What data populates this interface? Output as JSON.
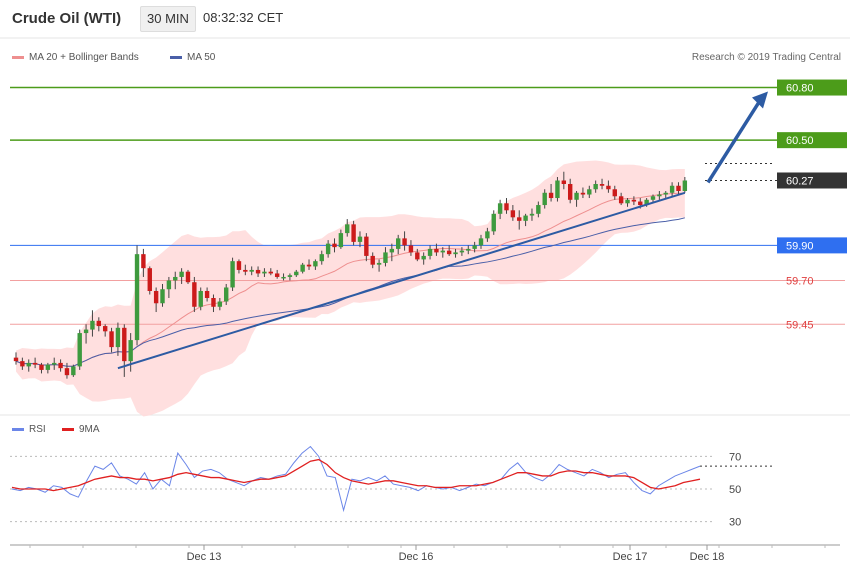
{
  "header": {
    "instrument": "Crude Oil (WTI)",
    "timeframe": "30 MIN",
    "time": "08:32:32 CET"
  },
  "legend": {
    "ma20_label": "MA 20 + Bollinger Bands",
    "ma50_label": "MA 50",
    "credit": "Research © 2019 Trading Central"
  },
  "rsi_legend": {
    "rsi_label": "RSI",
    "ma_label": "9MA"
  },
  "colors": {
    "up": "#3e9a3e",
    "down": "#cc1b1b",
    "bollinger_fill": "#ffd9d9",
    "ma20": "#ee8f8f",
    "ma50": "#4a5fa8",
    "trendline": "#2d5ba3",
    "resistance": "#4c9c1a",
    "pivot": "#2f6ff0",
    "support": "#e04040",
    "rsi": "#6b86e8",
    "rsi_ma": "#e02020"
  },
  "chart_data": [
    {
      "type": "candlestick",
      "title": "Crude Oil (WTI)",
      "ylim": [
        58.95,
        60.9
      ],
      "x_ticks": [
        "Dec 13",
        "Dec 16",
        "Dec 17",
        "Dec 18"
      ],
      "levels": [
        {
          "value": 60.8,
          "label": "60.80",
          "kind": "resistance"
        },
        {
          "value": 60.5,
          "label": "60.50",
          "kind": "resistance"
        },
        {
          "value": 60.27,
          "label": "60.27",
          "kind": "last"
        },
        {
          "value": 59.9,
          "label": "59.90",
          "kind": "pivot"
        },
        {
          "value": 59.7,
          "label": "59.70",
          "kind": "support"
        },
        {
          "value": 59.45,
          "label": "59.45",
          "kind": "support"
        }
      ],
      "forecast_arrow": {
        "from": 60.27,
        "to": 60.8
      },
      "trendline": {
        "start": 59.2,
        "end": 60.2
      },
      "candles": [
        [
          59.26,
          59.29,
          59.22,
          59.24
        ],
        [
          59.24,
          59.26,
          59.19,
          59.21
        ],
        [
          59.21,
          59.25,
          59.18,
          59.23
        ],
        [
          59.23,
          59.26,
          59.2,
          59.22
        ],
        [
          59.22,
          59.23,
          59.17,
          59.19
        ],
        [
          59.19,
          59.23,
          59.17,
          59.22
        ],
        [
          59.22,
          59.26,
          59.19,
          59.23
        ],
        [
          59.23,
          59.25,
          59.18,
          59.2
        ],
        [
          59.2,
          59.23,
          59.14,
          59.16
        ],
        [
          59.16,
          59.22,
          59.15,
          59.21
        ],
        [
          59.21,
          59.42,
          59.19,
          59.4
        ],
        [
          59.4,
          59.45,
          59.34,
          59.42
        ],
        [
          59.42,
          59.53,
          59.38,
          59.47
        ],
        [
          59.47,
          59.49,
          59.41,
          59.44
        ],
        [
          59.44,
          59.45,
          59.38,
          59.41
        ],
        [
          59.41,
          59.43,
          59.29,
          59.32
        ],
        [
          59.32,
          59.46,
          59.27,
          59.43
        ],
        [
          59.43,
          59.45,
          59.15,
          59.24
        ],
        [
          59.24,
          59.4,
          59.18,
          59.36
        ],
        [
          59.36,
          59.9,
          59.33,
          59.85
        ],
        [
          59.85,
          59.88,
          59.72,
          59.77
        ],
        [
          59.77,
          59.78,
          59.62,
          59.64
        ],
        [
          59.64,
          59.66,
          59.52,
          59.57
        ],
        [
          59.57,
          59.68,
          59.55,
          59.65
        ],
        [
          59.65,
          59.72,
          59.6,
          59.7
        ],
        [
          59.7,
          59.75,
          59.65,
          59.72
        ],
        [
          59.72,
          59.77,
          59.68,
          59.75
        ],
        [
          59.75,
          59.76,
          59.68,
          59.69
        ],
        [
          59.69,
          59.72,
          59.52,
          59.55
        ],
        [
          59.55,
          59.66,
          59.53,
          59.64
        ],
        [
          59.64,
          59.66,
          59.58,
          59.6
        ],
        [
          59.6,
          59.62,
          59.52,
          59.55
        ],
        [
          59.55,
          59.6,
          59.53,
          59.58
        ],
        [
          59.58,
          59.68,
          59.56,
          59.66
        ],
        [
          59.66,
          59.83,
          59.64,
          59.81
        ],
        [
          59.81,
          59.82,
          59.74,
          59.76
        ],
        [
          59.76,
          59.79,
          59.73,
          59.75
        ],
        [
          59.75,
          59.78,
          59.73,
          59.76
        ],
        [
          59.76,
          59.78,
          59.72,
          59.74
        ],
        [
          59.74,
          59.77,
          59.72,
          59.75
        ],
        [
          59.75,
          59.77,
          59.73,
          59.74
        ],
        [
          59.74,
          59.76,
          59.71,
          59.72
        ],
        [
          59.72,
          59.74,
          59.7,
          59.72
        ],
        [
          59.72,
          59.74,
          59.7,
          59.73
        ],
        [
          59.73,
          59.76,
          59.72,
          59.75
        ],
        [
          59.75,
          59.8,
          59.74,
          59.79
        ],
        [
          59.79,
          59.82,
          59.76,
          59.78
        ],
        [
          59.78,
          59.82,
          59.76,
          59.81
        ],
        [
          59.81,
          59.87,
          59.79,
          59.85
        ],
        [
          59.85,
          59.93,
          59.83,
          59.91
        ],
        [
          59.91,
          59.94,
          59.86,
          59.89
        ],
        [
          59.89,
          59.99,
          59.88,
          59.97
        ],
        [
          59.97,
          60.05,
          59.95,
          60.02
        ],
        [
          60.02,
          60.04,
          59.9,
          59.92
        ],
        [
          59.92,
          59.98,
          59.89,
          59.95
        ],
        [
          59.95,
          59.97,
          59.81,
          59.84
        ],
        [
          59.84,
          59.86,
          59.77,
          59.79
        ],
        [
          59.79,
          59.82,
          59.75,
          59.8
        ],
        [
          59.8,
          59.89,
          59.78,
          59.86
        ],
        [
          59.86,
          59.91,
          59.81,
          59.88
        ],
        [
          59.88,
          59.96,
          59.85,
          59.94
        ],
        [
          59.94,
          59.98,
          59.87,
          59.9
        ],
        [
          59.9,
          59.93,
          59.84,
          59.86
        ],
        [
          59.86,
          59.88,
          59.81,
          59.82
        ],
        [
          59.82,
          59.86,
          59.79,
          59.84
        ],
        [
          59.84,
          59.9,
          59.82,
          59.88
        ],
        [
          59.88,
          59.91,
          59.84,
          59.86
        ],
        [
          59.86,
          59.89,
          59.83,
          59.87
        ],
        [
          59.87,
          59.9,
          59.84,
          59.85
        ],
        [
          59.85,
          59.88,
          59.83,
          59.86
        ],
        [
          59.86,
          59.89,
          59.84,
          59.87
        ],
        [
          59.87,
          59.9,
          59.85,
          59.88
        ],
        [
          59.88,
          59.92,
          59.86,
          59.9
        ],
        [
          59.9,
          59.96,
          59.88,
          59.94
        ],
        [
          59.94,
          60.0,
          59.92,
          59.98
        ],
        [
          59.98,
          60.1,
          59.96,
          60.08
        ],
        [
          60.08,
          60.16,
          60.05,
          60.14
        ],
        [
          60.14,
          60.17,
          60.08,
          60.1
        ],
        [
          60.1,
          60.13,
          60.04,
          60.06
        ],
        [
          60.06,
          60.1,
          59.99,
          60.04
        ],
        [
          60.04,
          60.08,
          60.01,
          60.07
        ],
        [
          60.07,
          60.11,
          60.04,
          60.08
        ],
        [
          60.08,
          60.15,
          60.06,
          60.13
        ],
        [
          60.13,
          60.22,
          60.11,
          60.2
        ],
        [
          60.2,
          60.25,
          60.15,
          60.17
        ],
        [
          60.17,
          60.29,
          60.15,
          60.27
        ],
        [
          60.27,
          60.32,
          60.22,
          60.25
        ],
        [
          60.25,
          60.28,
          60.14,
          60.16
        ],
        [
          60.16,
          60.21,
          60.12,
          60.2
        ],
        [
          60.2,
          60.23,
          60.17,
          60.19
        ],
        [
          60.19,
          60.24,
          60.17,
          60.22
        ],
        [
          60.22,
          60.27,
          60.2,
          60.25
        ],
        [
          60.25,
          60.28,
          60.22,
          60.24
        ],
        [
          60.24,
          60.27,
          60.2,
          60.22
        ],
        [
          60.22,
          60.24,
          60.16,
          60.18
        ],
        [
          60.18,
          60.2,
          60.13,
          60.14
        ],
        [
          60.14,
          60.17,
          60.12,
          60.16
        ],
        [
          60.16,
          60.18,
          60.13,
          60.15
        ],
        [
          60.15,
          60.17,
          60.11,
          60.13
        ],
        [
          60.13,
          60.17,
          60.12,
          60.16
        ],
        [
          60.16,
          60.19,
          60.14,
          60.18
        ],
        [
          60.18,
          60.21,
          60.16,
          60.19
        ],
        [
          60.19,
          60.21,
          60.17,
          60.2
        ],
        [
          60.2,
          60.26,
          60.18,
          60.24
        ],
        [
          60.24,
          60.26,
          60.19,
          60.21
        ],
        [
          60.21,
          60.29,
          60.2,
          60.27
        ]
      ]
    },
    {
      "type": "line",
      "title": "RSI",
      "ylim": [
        20,
        80
      ],
      "y_ticks": [
        70,
        50,
        30
      ],
      "series": [
        {
          "name": "RSI",
          "values": [
            50,
            49,
            51,
            50,
            48,
            52,
            51,
            47,
            45,
            55,
            64,
            62,
            66,
            58,
            56,
            53,
            60,
            50,
            56,
            52,
            72,
            65,
            57,
            61,
            62,
            60,
            56,
            54,
            52,
            55,
            57,
            56,
            58,
            59,
            66,
            72,
            76,
            70,
            58,
            57,
            37,
            56,
            55,
            57,
            55,
            58,
            53,
            52,
            51,
            49,
            52,
            51,
            50,
            51,
            49,
            51,
            53,
            52,
            54,
            56,
            62,
            66,
            60,
            57,
            55,
            59,
            65,
            62,
            60,
            58,
            62,
            60,
            57,
            59,
            60,
            54,
            49,
            47,
            52,
            55,
            58,
            60,
            62,
            64
          ]
        },
        {
          "name": "9MA",
          "values": [
            51,
            50,
            50,
            50,
            50,
            49,
            50,
            51,
            52,
            54,
            56,
            57,
            58,
            57,
            57,
            56,
            56,
            55,
            56,
            57,
            59,
            60,
            59,
            58,
            57,
            57,
            56,
            55,
            54,
            55,
            56,
            56,
            57,
            58,
            61,
            64,
            67,
            68,
            65,
            60,
            57,
            55,
            54,
            53,
            54,
            55,
            55,
            54,
            53,
            52,
            52,
            51,
            51,
            51,
            52,
            52,
            52,
            53,
            54,
            56,
            58,
            60,
            60,
            59,
            58,
            58,
            60,
            61,
            61,
            60,
            60,
            59,
            58,
            58,
            58,
            57,
            54,
            51,
            50,
            51,
            52,
            54,
            55,
            56
          ]
        }
      ]
    }
  ]
}
